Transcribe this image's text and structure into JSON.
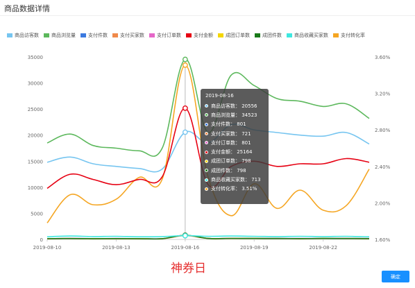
{
  "page": {
    "title": "商品数据详情",
    "annotation": "神券日",
    "ok_button": "确定"
  },
  "legend": [
    {
      "name": "商品访客数",
      "color": "#76c5f0"
    },
    {
      "name": "商品浏览量",
      "color": "#5cb85c"
    },
    {
      "name": "支付件数",
      "color": "#3c7ae0"
    },
    {
      "name": "支付买家数",
      "color": "#f08a4b"
    },
    {
      "name": "支付订单数",
      "color": "#e567c8"
    },
    {
      "name": "支付金额",
      "color": "#e60012"
    },
    {
      "name": "成团订单数",
      "color": "#f5d600"
    },
    {
      "name": "成团件数",
      "color": "#1a7a1a"
    },
    {
      "name": "商品收藏买家数",
      "color": "#3ee8e0"
    },
    {
      "name": "支付转化率",
      "color": "#f5a623"
    }
  ],
  "tooltip": {
    "date": "2019-08-16",
    "rows": [
      {
        "label": "商品访客数",
        "value": "20556",
        "color": "#76c5f0"
      },
      {
        "label": "商品浏览量",
        "value": "34523",
        "color": "#5cb85c"
      },
      {
        "label": "支付件数",
        "value": "801",
        "color": "#3c7ae0"
      },
      {
        "label": "支付买家数",
        "value": "721",
        "color": "#f08a4b"
      },
      {
        "label": "支付订单数",
        "value": "801",
        "color": "#e567c8"
      },
      {
        "label": "支付金额",
        "value": "25164",
        "color": "#e60012"
      },
      {
        "label": "成团订单数",
        "value": "798",
        "color": "#f5d600"
      },
      {
        "label": "成团件数",
        "value": "798",
        "color": "#1a7a1a"
      },
      {
        "label": "商品收藏买家数",
        "value": "713",
        "color": "#3ee8e0"
      },
      {
        "label": "支付转化率",
        "value": "3.51%",
        "color": "#f5a623"
      }
    ]
  },
  "chart_data": {
    "type": "line",
    "x": [
      "2019-08-10",
      "2019-08-11",
      "2019-08-12",
      "2019-08-13",
      "2019-08-14",
      "2019-08-15",
      "2019-08-16",
      "2019-08-17",
      "2019-08-18",
      "2019-08-19",
      "2019-08-20",
      "2019-08-21",
      "2019-08-22",
      "2019-08-23",
      "2019-08-24"
    ],
    "x_tick_labels": [
      "2019-08-10",
      "2019-08-13",
      "2019-08-16",
      "2019-08-19",
      "2019-08-22"
    ],
    "x_tick_indices": [
      0,
      3,
      6,
      9,
      12
    ],
    "y_left": {
      "range": [
        0,
        35000
      ],
      "ticks": [
        "0",
        "5000",
        "10000",
        "15000",
        "20000",
        "25000",
        "30000",
        "35000"
      ]
    },
    "y_right": {
      "range": [
        1.6,
        3.6
      ],
      "ticks": [
        "1.60%",
        "2.00%",
        "2.40%",
        "2.80%",
        "3.20%",
        "3.60%"
      ]
    },
    "series": [
      {
        "name": "商品访客数",
        "axis": "left",
        "values": [
          14800,
          15800,
          14500,
          14000,
          13600,
          13500,
          20556,
          18500,
          22000,
          21000,
          20500,
          20000,
          19800,
          20500,
          18300
        ]
      },
      {
        "name": "商品浏览量",
        "axis": "left",
        "values": [
          18500,
          20200,
          18000,
          17500,
          17000,
          17500,
          34523,
          20500,
          31500,
          29500,
          27000,
          26500,
          25500,
          26000,
          23200
        ]
      },
      {
        "name": "支付件数",
        "axis": "left",
        "values": [
          150,
          180,
          160,
          170,
          160,
          150,
          801,
          200,
          210,
          190,
          180,
          170,
          190,
          180,
          170
        ]
      },
      {
        "name": "支付买家数",
        "axis": "left",
        "values": [
          130,
          160,
          140,
          150,
          140,
          130,
          721,
          180,
          190,
          170,
          160,
          150,
          170,
          160,
          150
        ]
      },
      {
        "name": "支付订单数",
        "axis": "left",
        "values": [
          150,
          180,
          160,
          170,
          160,
          150,
          801,
          200,
          210,
          190,
          180,
          170,
          190,
          180,
          170
        ]
      },
      {
        "name": "支付金额",
        "axis": "left",
        "values": [
          9800,
          12500,
          11500,
          10500,
          11500,
          12000,
          25164,
          10500,
          14000,
          15000,
          14000,
          14500,
          14500,
          15500,
          14800
        ]
      },
      {
        "name": "成团订单数",
        "axis": "left",
        "values": [
          140,
          170,
          150,
          160,
          150,
          140,
          798,
          190,
          200,
          180,
          170,
          160,
          180,
          170,
          160
        ]
      },
      {
        "name": "成团件数",
        "axis": "left",
        "values": [
          140,
          170,
          150,
          160,
          150,
          140,
          798,
          190,
          200,
          180,
          170,
          160,
          180,
          170,
          160
        ]
      },
      {
        "name": "商品收藏买家数",
        "axis": "left",
        "values": [
          500,
          650,
          550,
          600,
          500,
          550,
          713,
          600,
          650,
          600,
          550,
          600,
          550,
          600,
          500
        ]
      },
      {
        "name": "支付转化率",
        "axis": "right",
        "values": [
          1.78,
          2.09,
          1.98,
          2.04,
          2.28,
          2.26,
          3.51,
          2.28,
          1.86,
          2.21,
          1.94,
          2.14,
          1.92,
          1.97,
          2.37
        ]
      }
    ]
  }
}
